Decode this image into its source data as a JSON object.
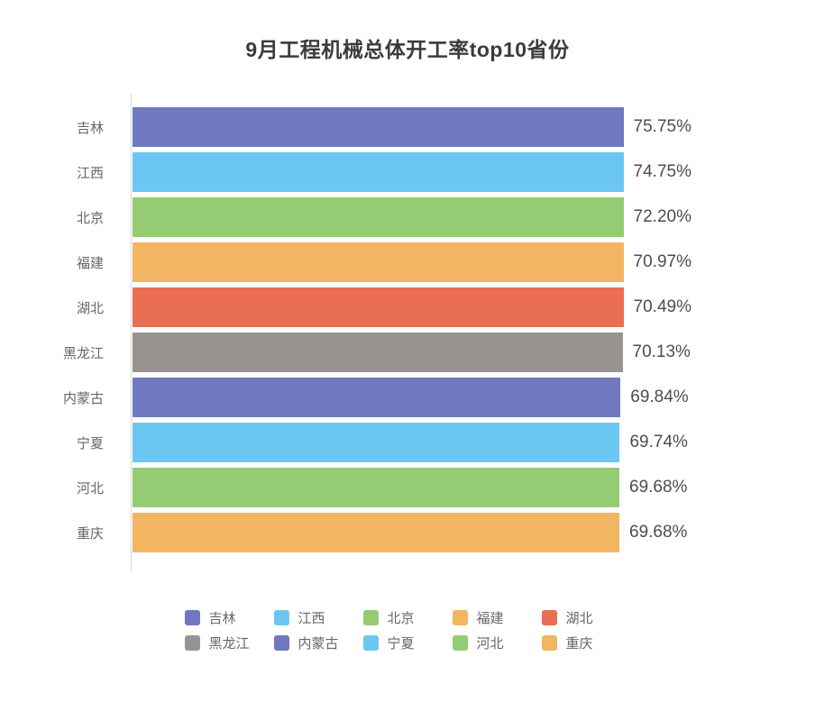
{
  "title": "9月工程机械总体开工率top10省份",
  "palette": {
    "purple": "#6f79bf",
    "blue": "#6cc6f2",
    "green": "#95cc73",
    "orange": "#f2b562",
    "red": "#ea6e52",
    "gray": "#979390",
    "axis_line": "#d9d9d9",
    "title_text": "#3b3b3b",
    "category_text": "#666666",
    "value_text": "#4d4d4d"
  },
  "chart_data": {
    "type": "bar",
    "orientation": "horizontal",
    "title": "9月工程机械总体开工率top10省份",
    "xlabel": "",
    "ylabel": "",
    "xlim": [
      0,
      80
    ],
    "grid": false,
    "categories": [
      "吉林",
      "江西",
      "北京",
      "福建",
      "湖北",
      "黑龙江",
      "内蒙古",
      "宁夏",
      "河北",
      "重庆"
    ],
    "values": [
      75.75,
      74.75,
      72.2,
      70.97,
      70.49,
      70.13,
      69.84,
      69.74,
      69.68,
      69.68
    ],
    "value_labels": [
      "75.75%",
      "74.75%",
      "72.20%",
      "70.97%",
      "70.49%",
      "70.13%",
      "69.84%",
      "69.74%",
      "69.68%",
      "69.68%"
    ],
    "bar_colors": [
      "#6f79bf",
      "#6cc6f2",
      "#95cc73",
      "#f2b562",
      "#ea6e52",
      "#979390",
      "#6f79bf",
      "#6cc6f2",
      "#95cc73",
      "#f2b562"
    ],
    "legend": {
      "position": "bottom",
      "rows": 2,
      "columns": 5,
      "entries": [
        "吉林",
        "江西",
        "北京",
        "福建",
        "湖北",
        "黑龙江",
        "内蒙古",
        "宁夏",
        "河北",
        "重庆"
      ]
    }
  }
}
